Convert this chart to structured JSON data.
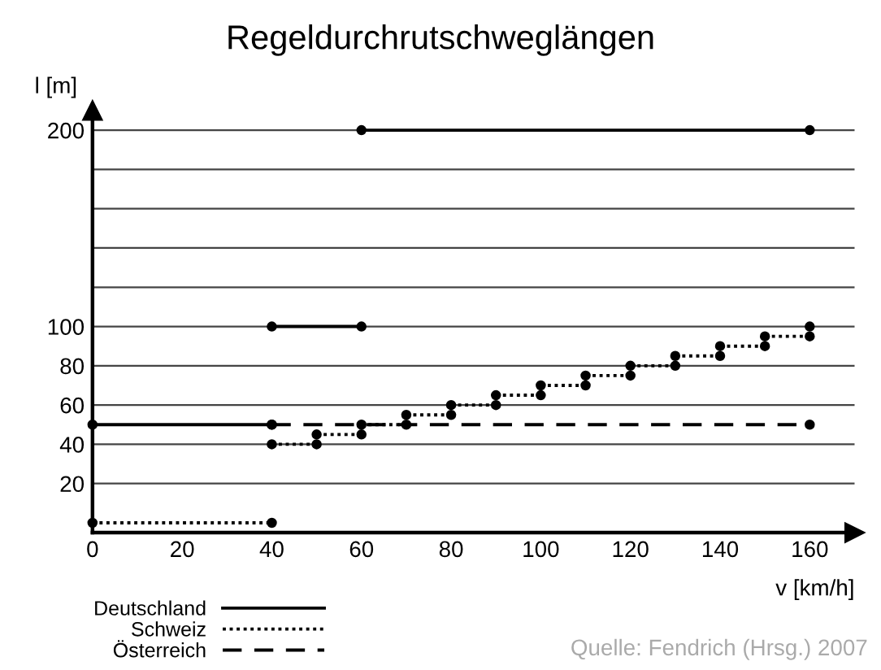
{
  "chart_data": {
    "type": "line",
    "title": "Regeldurchrutschweglängen",
    "xlabel": "v [km/h]",
    "ylabel": "l [m]",
    "annotations": [
      "Quelle: Fendrich (Hrsg.) 2007"
    ],
    "series": [
      {
        "name": "Deutschland",
        "color": "#000000",
        "line_style": "solid",
        "x": [
          0,
          40
        ],
        "values": [
          50,
          50
        ]
      },
      {
        "color": "#000000",
        "line_style": "solid",
        "x": [
          40,
          60
        ],
        "values": [
          100,
          100
        ]
      },
      {
        "color": "#000000",
        "line_style": "solid",
        "x": [
          60,
          160
        ],
        "values": [
          200,
          200
        ]
      },
      {
        "name": "Schweiz",
        "color": "#000000",
        "line_style": "dotted",
        "x": [
          0,
          40
        ],
        "values": [
          0,
          0
        ]
      },
      {
        "color": "#000000",
        "line_style": "dotted",
        "x": [
          40,
          50
        ],
        "values": [
          40,
          40
        ]
      },
      {
        "color": "#000000",
        "line_style": "dotted",
        "x": [
          50,
          60
        ],
        "values": [
          45,
          45
        ]
      },
      {
        "color": "#000000",
        "line_style": "dotted",
        "x": [
          60,
          70
        ],
        "values": [
          50,
          50
        ]
      },
      {
        "color": "#000000",
        "line_style": "dotted",
        "x": [
          70,
          80
        ],
        "values": [
          55,
          55
        ]
      },
      {
        "color": "#000000",
        "line_style": "dotted",
        "x": [
          80,
          90
        ],
        "values": [
          60,
          60
        ]
      },
      {
        "color": "#000000",
        "line_style": "dotted",
        "x": [
          90,
          100
        ],
        "values": [
          65,
          65
        ]
      },
      {
        "color": "#000000",
        "line_style": "dotted",
        "x": [
          100,
          110
        ],
        "values": [
          70,
          70
        ]
      },
      {
        "color": "#000000",
        "line_style": "dotted",
        "x": [
          110,
          120
        ],
        "values": [
          75,
          75
        ]
      },
      {
        "color": "#000000",
        "line_style": "dotted",
        "x": [
          120,
          130
        ],
        "values": [
          80,
          80
        ]
      },
      {
        "color": "#000000",
        "line_style": "dotted",
        "x": [
          130,
          140
        ],
        "values": [
          85,
          85
        ]
      },
      {
        "color": "#000000",
        "line_style": "dotted",
        "x": [
          140,
          150
        ],
        "values": [
          90,
          90
        ]
      },
      {
        "color": "#000000",
        "line_style": "dotted",
        "x": [
          150,
          160
        ],
        "values": [
          95,
          95
        ]
      },
      {
        "color": "#000000",
        "line_style": "dotted",
        "x": [
          160
        ],
        "values": [
          100
        ]
      },
      {
        "name": "Österreich",
        "color": "#000000",
        "line_style": "dashed",
        "x": [
          40,
          160
        ],
        "values": [
          50,
          50
        ]
      }
    ],
    "xlim": [
      0,
      170
    ],
    "ylim": [
      -5,
      210
    ],
    "xticks": [
      0,
      20,
      40,
      60,
      80,
      100,
      120,
      140,
      160
    ],
    "yticks": [
      20,
      40,
      60,
      80,
      100,
      {
        "value": 120,
        "label": null
      },
      {
        "value": 140,
        "label": null
      },
      {
        "value": 160,
        "label": null
      },
      {
        "value": 180,
        "label": null
      },
      200
    ],
    "grid": "y",
    "legend": "bottom left",
    "marker": "circle"
  }
}
